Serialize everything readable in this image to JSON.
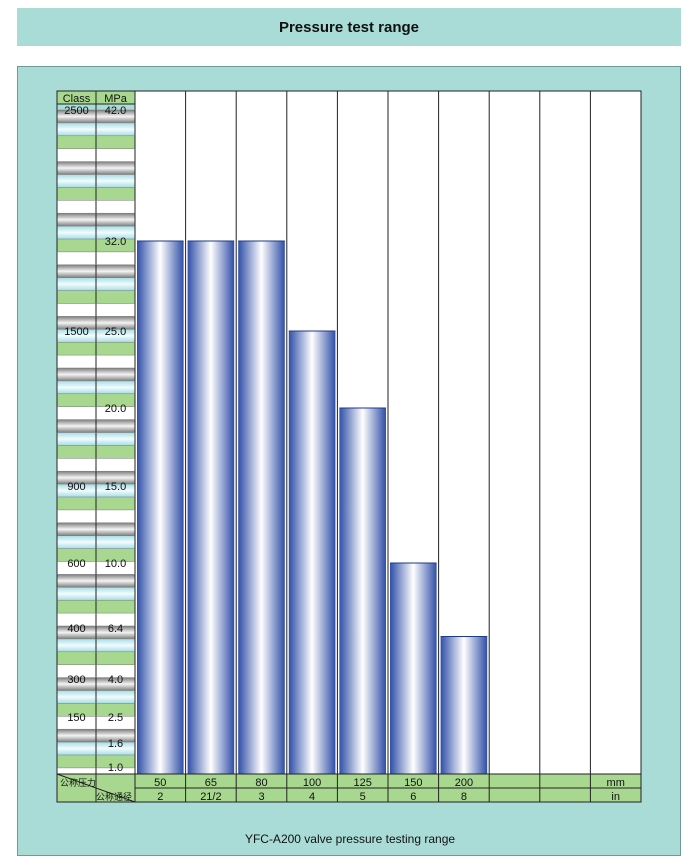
{
  "page": {
    "title": "Pressure test range",
    "caption": "YFC-A200 valve pressure testing range"
  },
  "colors": {
    "background": "#a9dcd6",
    "bar_dark": "#2f4fa8",
    "bar_light": "#ffffff",
    "green_band": "#a8d890",
    "cyan_band": "#cdeef2",
    "gray_band": "#9a9a9a"
  },
  "chart_data": {
    "type": "bar",
    "header": {
      "class": "Class",
      "mpa": "MPa",
      "mm": "mm",
      "in": "in"
    },
    "row_labels": {
      "nominal_pressure": "公称压力",
      "nominal_diameter": "公称通径"
    },
    "y_ticks": [
      {
        "class": "2500",
        "mpa": "42.0",
        "value": 42.0
      },
      {
        "class": "",
        "mpa": "32.0",
        "value": 32.0
      },
      {
        "class": "1500",
        "mpa": "25.0",
        "value": 25.0
      },
      {
        "class": "",
        "mpa": "20.0",
        "value": 20.0
      },
      {
        "class": "900",
        "mpa": "15.0",
        "value": 15.0
      },
      {
        "class": "600",
        "mpa": "10.0",
        "value": 10.0
      },
      {
        "class": "400",
        "mpa": "6.4",
        "value": 6.4
      },
      {
        "class": "300",
        "mpa": "4.0",
        "value": 4.0
      },
      {
        "class": "150",
        "mpa": "2.5",
        "value": 2.5
      },
      {
        "class": "",
        "mpa": "1.6",
        "value": 1.6
      },
      {
        "class": "",
        "mpa": "1.0",
        "value": 1.0
      }
    ],
    "categories_mm": [
      "50",
      "65",
      "80",
      "100",
      "125",
      "150",
      "200",
      "",
      "",
      ""
    ],
    "categories_in": [
      "2",
      "21/2",
      "3",
      "4",
      "5",
      "6",
      "8",
      "",
      "",
      ""
    ],
    "values": [
      32.0,
      32.0,
      32.0,
      25.0,
      20.0,
      10.0,
      6.0,
      null,
      null,
      null
    ]
  }
}
